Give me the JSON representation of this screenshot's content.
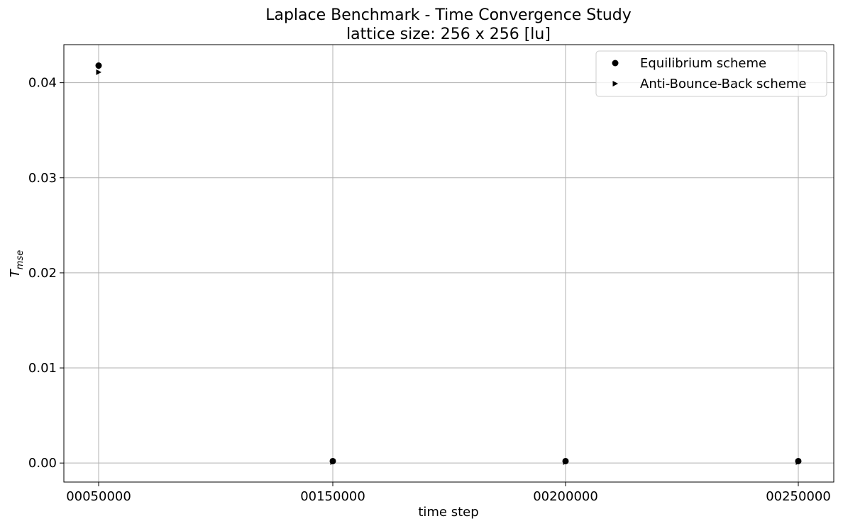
{
  "chart_data": {
    "type": "scatter",
    "title": "Laplace Benchmark - Time Convergence Study",
    "subtitle": "lattice size: 256 x  256 [lu]",
    "xlabel": "time step",
    "ylabel": "T",
    "ylabel_subscript": "mse",
    "x_categories": [
      "00050000",
      "00150000",
      "00200000",
      "00250000"
    ],
    "yticks": [
      "0.00",
      "0.01",
      "0.02",
      "0.03",
      "0.04"
    ],
    "ytick_values": [
      0.0,
      0.01,
      0.02,
      0.03,
      0.04
    ],
    "ylim": [
      -0.002,
      0.044
    ],
    "grid": true,
    "legend_position": "top-right",
    "series": [
      {
        "name": "Equilibrium scheme",
        "marker": "circle",
        "color": "#000000",
        "values": [
          0.0418,
          0.0002,
          0.0002,
          0.0002
        ]
      },
      {
        "name": "Anti-Bounce-Back scheme",
        "marker": "triangle-right",
        "color": "#000000",
        "values": [
          0.0411,
          0.0001,
          0.0001,
          0.0001
        ]
      }
    ]
  }
}
